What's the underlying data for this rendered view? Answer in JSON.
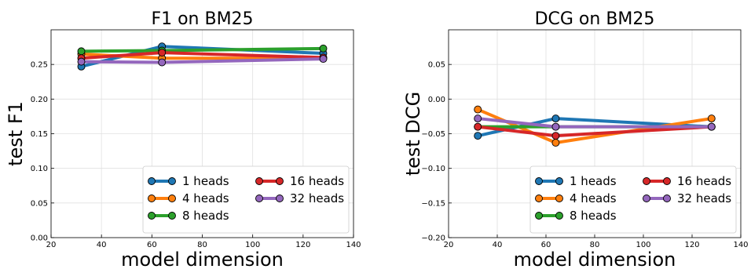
{
  "chart_data": [
    {
      "type": "line",
      "title": "F1 on BM25",
      "xlabel": "model dimension",
      "ylabel": "test F1",
      "xlim": [
        20,
        140
      ],
      "ylim": [
        0.0,
        0.3
      ],
      "xticks": [
        20,
        40,
        60,
        80,
        100,
        120,
        140
      ],
      "yticks": [
        0.0,
        0.05,
        0.1,
        0.15,
        0.2,
        0.25
      ],
      "ytick_labels": [
        "0.00",
        "0.05",
        "0.10",
        "0.15",
        "0.20",
        "0.25"
      ],
      "grid": true,
      "legend_position": "bottom-right",
      "legend_columns": 2,
      "x": [
        32,
        64,
        128
      ],
      "series": [
        {
          "name": "1 heads",
          "color": "#1f77b4",
          "values": [
            0.247,
            0.276,
            0.266
          ]
        },
        {
          "name": "4 heads",
          "color": "#ff7f0e",
          "values": [
            0.265,
            0.259,
            0.259
          ]
        },
        {
          "name": "8 heads",
          "color": "#2ca02c",
          "values": [
            0.269,
            0.27,
            0.273
          ]
        },
        {
          "name": "16 heads",
          "color": "#d62728",
          "values": [
            0.259,
            0.267,
            0.26
          ]
        },
        {
          "name": "32 heads",
          "color": "#9467bd",
          "values": [
            0.254,
            0.253,
            0.258
          ]
        }
      ]
    },
    {
      "type": "line",
      "title": "DCG on BM25",
      "xlabel": "model dimension",
      "ylabel": "test DCG",
      "xlim": [
        20,
        140
      ],
      "ylim": [
        -0.2,
        0.1
      ],
      "xticks": [
        20,
        40,
        60,
        80,
        100,
        120,
        140
      ],
      "yticks": [
        -0.2,
        -0.15,
        -0.1,
        -0.05,
        0.0,
        0.05
      ],
      "ytick_labels": [
        "−0.20",
        "−0.15",
        "−0.10",
        "−0.05",
        "0.00",
        "0.05"
      ],
      "grid": true,
      "legend_position": "bottom-right",
      "legend_columns": 2,
      "x": [
        32,
        64,
        128
      ],
      "series": [
        {
          "name": "1 heads",
          "color": "#1f77b4",
          "values": [
            -0.053,
            -0.028,
            -0.04
          ]
        },
        {
          "name": "4 heads",
          "color": "#ff7f0e",
          "values": [
            -0.015,
            -0.063,
            -0.028
          ]
        },
        {
          "name": "8 heads",
          "color": "#2ca02c",
          "values": [
            -0.04,
            -0.04,
            -0.04
          ]
        },
        {
          "name": "16 heads",
          "color": "#d62728",
          "values": [
            -0.04,
            -0.053,
            -0.04
          ]
        },
        {
          "name": "32 heads",
          "color": "#9467bd",
          "values": [
            -0.028,
            -0.04,
            -0.04
          ]
        }
      ]
    }
  ]
}
